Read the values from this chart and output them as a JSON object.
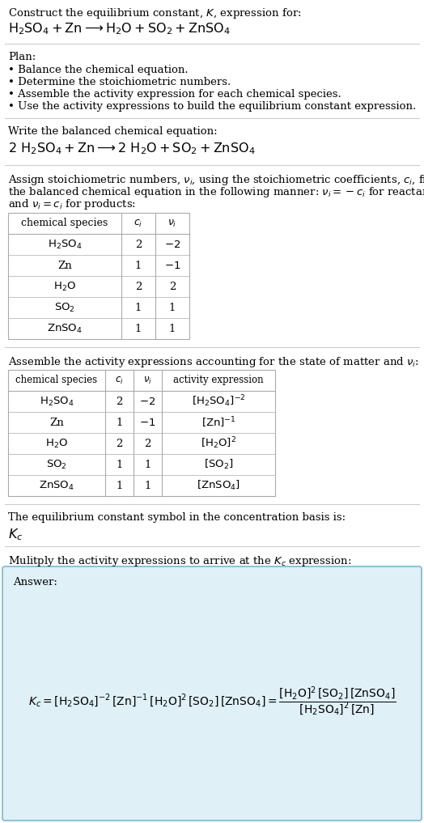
{
  "bg_color": "#ffffff",
  "text_color": "#000000",
  "light_blue_bg": "#dff0f7",
  "table_border": "#aaaaaa",
  "answer_border": "#7ab8d4",
  "title_line1": "Construct the equilibrium constant, $K$, expression for:",
  "title_line2": "$\\mathrm{H_2SO_4 + Zn \\longrightarrow H_2O + SO_2 + ZnSO_4}$",
  "plan_header": "Plan:",
  "plan_bullets": [
    "• Balance the chemical equation.",
    "• Determine the stoichiometric numbers.",
    "• Assemble the activity expression for each chemical species.",
    "• Use the activity expressions to build the equilibrium constant expression."
  ],
  "balanced_header": "Write the balanced chemical equation:",
  "balanced_eq": "$\\mathrm{2\\ H_2SO_4 + Zn \\longrightarrow 2\\ H_2O + SO_2 + ZnSO_4}$",
  "stoich_intro_lines": [
    "Assign stoichiometric numbers, $\\nu_i$, using the stoichiometric coefficients, $c_i$, from",
    "the balanced chemical equation in the following manner: $\\nu_i = -c_i$ for reactants",
    "and $\\nu_i = c_i$ for products:"
  ],
  "table1_headers": [
    "chemical species",
    "$c_i$",
    "$\\nu_i$"
  ],
  "table1_rows": [
    [
      "$\\mathrm{H_2SO_4}$",
      "2",
      "$-2$"
    ],
    [
      "Zn",
      "1",
      "$-1$"
    ],
    [
      "$\\mathrm{H_2O}$",
      "2",
      "2"
    ],
    [
      "$\\mathrm{SO_2}$",
      "1",
      "1"
    ],
    [
      "$\\mathrm{ZnSO_4}$",
      "1",
      "1"
    ]
  ],
  "activity_intro": "Assemble the activity expressions accounting for the state of matter and $\\nu_i$:",
  "table2_headers": [
    "chemical species",
    "$c_i$",
    "$\\nu_i$",
    "activity expression"
  ],
  "table2_rows": [
    [
      "$\\mathrm{H_2SO_4}$",
      "2",
      "$-2$",
      "$[\\mathrm{H_2SO_4}]^{-2}$"
    ],
    [
      "Zn",
      "1",
      "$-1$",
      "$[\\mathrm{Zn}]^{-1}$"
    ],
    [
      "$\\mathrm{H_2O}$",
      "2",
      "2",
      "$[\\mathrm{H_2O}]^{2}$"
    ],
    [
      "$\\mathrm{SO_2}$",
      "1",
      "1",
      "$[\\mathrm{SO_2}]$"
    ],
    [
      "$\\mathrm{ZnSO_4}$",
      "1",
      "1",
      "$[\\mathrm{ZnSO_4}]$"
    ]
  ],
  "kc_symbol_text": "The equilibrium constant symbol in the concentration basis is:",
  "kc_symbol": "$K_c$",
  "multiply_text": "Mulitply the activity expressions to arrive at the $K_c$ expression:",
  "answer_label": "Answer:",
  "answer_eq": "$K_c = [\\mathrm{H_2SO_4}]^{-2}\\,[\\mathrm{Zn}]^{-1}\\,[\\mathrm{H_2O}]^{2}\\,[\\mathrm{SO_2}]\\,[\\mathrm{ZnSO_4}] = \\dfrac{[\\mathrm{H_2O}]^{2}\\,[\\mathrm{SO_2}]\\,[\\mathrm{ZnSO_4}]}{[\\mathrm{H_2SO_4}]^{2}\\,[\\mathrm{Zn}]}$"
}
